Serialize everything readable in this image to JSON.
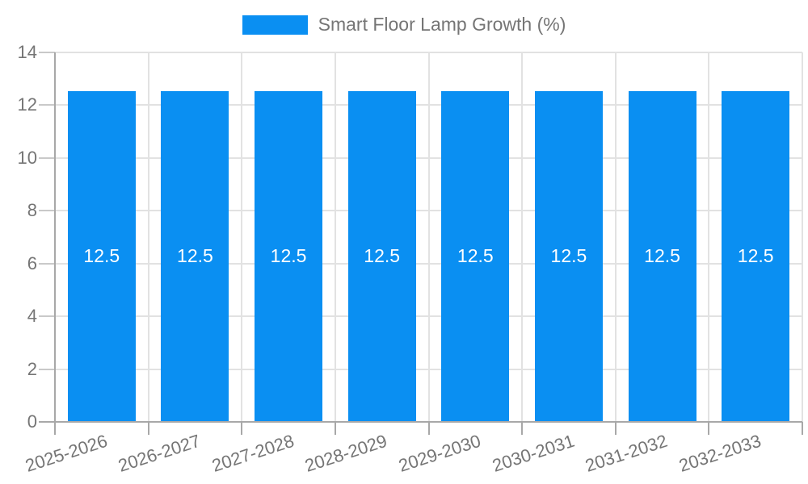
{
  "legend": {
    "label": "Smart Floor Lamp Growth (%)"
  },
  "chart_data": {
    "type": "bar",
    "title": "Smart Floor Lamp Growth (%)",
    "categories": [
      "2025-2026",
      "2026-2027",
      "2027-2028",
      "2028-2029",
      "2029-2030",
      "2030-2031",
      "2031-2032",
      "2032-2033"
    ],
    "values": [
      12.5,
      12.5,
      12.5,
      12.5,
      12.5,
      12.5,
      12.5,
      12.5
    ],
    "bar_labels": [
      "12.5",
      "12.5",
      "12.5",
      "12.5",
      "12.5",
      "12.5",
      "12.5",
      "12.5"
    ],
    "xlabel": "",
    "ylabel": "",
    "ylim": [
      0,
      14
    ],
    "yticks": [
      0,
      2,
      4,
      6,
      8,
      10,
      12,
      14
    ],
    "grid": true,
    "legend_position": "top-center",
    "bar_color": "#0a8ff2",
    "bar_label_color": "#ffffff",
    "axis_text_color": "#757575",
    "grid_color": "#e2e2e2",
    "axis_line_color": "#a8a8a8",
    "tick_color": "#c9c9c9"
  }
}
